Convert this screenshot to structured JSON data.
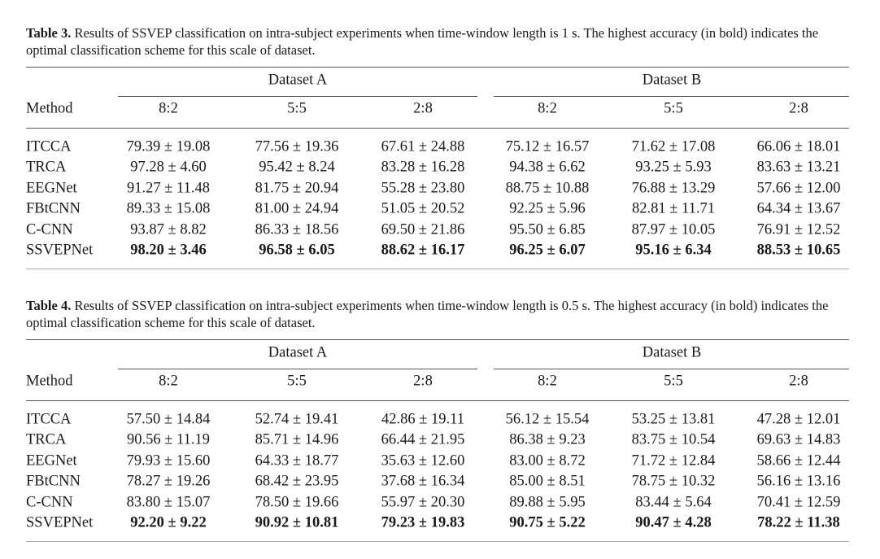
{
  "tables": [
    {
      "label": "Table 3.",
      "caption": "Results of SSVEP classification on intra-subject experiments when time-window length is 1 s. The highest accuracy (in bold) indicates the optimal classification scheme for this scale of dataset.",
      "method_header": "Method",
      "groups": [
        {
          "name": "Dataset A",
          "splits": [
            "8:2",
            "5:5",
            "2:8"
          ]
        },
        {
          "name": "Dataset B",
          "splits": [
            "8:2",
            "5:5",
            "2:8"
          ]
        }
      ],
      "rows": [
        {
          "method": "ITCCA",
          "values": [
            "79.39 ± 19.08",
            "77.56 ± 19.36",
            "67.61 ± 24.88",
            "75.12 ± 16.57",
            "71.62 ± 17.08",
            "66.06 ± 18.01"
          ]
        },
        {
          "method": "TRCA",
          "values": [
            "97.28 ± 4.60",
            "95.42 ± 8.24",
            "83.28 ± 16.28",
            "94.38 ± 6.62",
            "93.25 ± 5.93",
            "83.63 ± 13.21"
          ]
        },
        {
          "method": "EEGNet",
          "values": [
            "91.27 ± 11.48",
            "81.75 ± 20.94",
            "55.28 ± 23.80",
            "88.75 ± 10.88",
            "76.88 ± 13.29",
            "57.66 ± 12.00"
          ]
        },
        {
          "method": "FBtCNN",
          "values": [
            "89.33 ± 15.08",
            "81.00 ± 24.94",
            "51.05 ± 20.52",
            "92.25 ± 5.96",
            "82.81 ± 11.71",
            "64.34 ± 13.67"
          ]
        },
        {
          "method": "C-CNN",
          "values": [
            "93.87 ± 8.82",
            "86.33 ± 18.56",
            "69.50 ± 21.86",
            "95.50 ± 6.85",
            "87.97 ± 10.05",
            "76.91 ± 12.52"
          ]
        },
        {
          "method": "SSVEPNet",
          "bold": true,
          "values": [
            "98.20 ± 3.46",
            "96.58 ± 6.05",
            "88.62 ± 16.17",
            "96.25 ± 6.07",
            "95.16 ± 6.34",
            "88.53 ± 10.65"
          ]
        }
      ]
    },
    {
      "label": "Table 4.",
      "caption": "Results of SSVEP classification on intra-subject experiments when time-window length is 0.5 s. The highest accuracy (in bold) indicates the optimal classification scheme for this scale of dataset.",
      "method_header": "Method",
      "groups": [
        {
          "name": "Dataset A",
          "splits": [
            "8:2",
            "5:5",
            "2:8"
          ]
        },
        {
          "name": "Dataset B",
          "splits": [
            "8:2",
            "5:5",
            "2:8"
          ]
        }
      ],
      "rows": [
        {
          "method": "ITCCA",
          "values": [
            "57.50 ± 14.84",
            "52.74 ± 19.41",
            "42.86 ± 19.11",
            "56.12 ± 15.54",
            "53.25 ± 13.81",
            "47.28 ± 12.01"
          ]
        },
        {
          "method": "TRCA",
          "values": [
            "90.56 ± 11.19",
            "85.71 ± 14.96",
            "66.44 ± 21.95",
            "86.38 ± 9.23",
            "83.75 ± 10.54",
            "69.63 ± 14.83"
          ]
        },
        {
          "method": "EEGNet",
          "values": [
            "79.93 ± 15.60",
            "64.33 ± 18.77",
            "35.63 ± 12.60",
            "83.00 ± 8.72",
            "71.72 ± 12.84",
            "58.66 ± 12.44"
          ]
        },
        {
          "method": "FBtCNN",
          "values": [
            "78.27 ± 19.26",
            "68.42 ± 23.95",
            "37.68 ± 16.34",
            "85.00 ± 8.51",
            "78.75 ± 10.32",
            "56.16 ± 13.16"
          ]
        },
        {
          "method": "C-CNN",
          "values": [
            "83.80 ± 15.07",
            "78.50 ± 19.66",
            "55.97 ± 20.30",
            "89.88 ± 5.95",
            "83.44 ± 5.64",
            "70.41 ± 12.59"
          ]
        },
        {
          "method": "SSVEPNet",
          "bold": true,
          "values": [
            "92.20 ± 9.22",
            "90.92 ± 10.81",
            "79.23 ± 19.83",
            "90.75 ± 5.22",
            "90.47 ± 4.28",
            "78.22 ± 11.38"
          ]
        }
      ]
    }
  ]
}
